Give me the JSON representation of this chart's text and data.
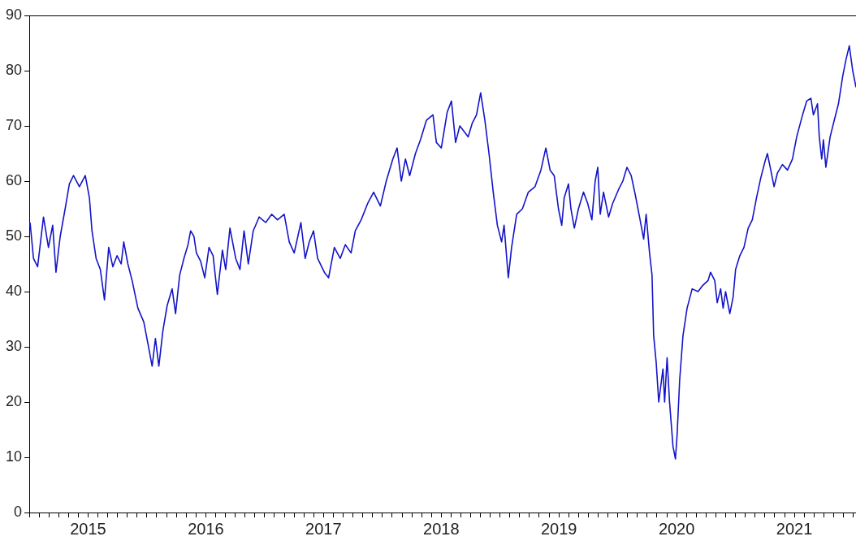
{
  "chart_data": {
    "type": "line",
    "grid": false,
    "legend": false,
    "marker": "none",
    "line_style": "solid",
    "xlim": [
      2015,
      2022.024
    ],
    "ylim": [
      0,
      90
    ],
    "yticks": [
      0,
      10,
      20,
      30,
      40,
      50,
      60,
      70,
      80,
      90
    ],
    "xticks": [
      {
        "value": 2015,
        "label": null
      },
      {
        "value": 2015.083,
        "label": null
      },
      {
        "value": 2015.167,
        "label": null
      },
      {
        "value": 2015.25,
        "label": null
      },
      {
        "value": 2015.333,
        "label": null
      },
      {
        "value": 2015.417,
        "label": null
      },
      {
        "value": 2015.5,
        "label": "2015"
      },
      {
        "value": 2015.583,
        "label": null
      },
      {
        "value": 2015.667,
        "label": null
      },
      {
        "value": 2015.75,
        "label": null
      },
      {
        "value": 2015.833,
        "label": null
      },
      {
        "value": 2015.917,
        "label": null
      },
      {
        "value": 2016,
        "label": null
      },
      {
        "value": 2016.083,
        "label": null
      },
      {
        "value": 2016.167,
        "label": null
      },
      {
        "value": 2016.25,
        "label": null
      },
      {
        "value": 2016.333,
        "label": null
      },
      {
        "value": 2016.417,
        "label": null
      },
      {
        "value": 2016.5,
        "label": "2016"
      },
      {
        "value": 2016.583,
        "label": null
      },
      {
        "value": 2016.667,
        "label": null
      },
      {
        "value": 2016.75,
        "label": null
      },
      {
        "value": 2016.833,
        "label": null
      },
      {
        "value": 2016.917,
        "label": null
      },
      {
        "value": 2017,
        "label": null
      },
      {
        "value": 2017.083,
        "label": null
      },
      {
        "value": 2017.167,
        "label": null
      },
      {
        "value": 2017.25,
        "label": null
      },
      {
        "value": 2017.333,
        "label": null
      },
      {
        "value": 2017.417,
        "label": null
      },
      {
        "value": 2017.5,
        "label": "2017"
      },
      {
        "value": 2017.583,
        "label": null
      },
      {
        "value": 2017.667,
        "label": null
      },
      {
        "value": 2017.75,
        "label": null
      },
      {
        "value": 2017.833,
        "label": null
      },
      {
        "value": 2017.917,
        "label": null
      },
      {
        "value": 2018,
        "label": null
      },
      {
        "value": 2018.083,
        "label": null
      },
      {
        "value": 2018.167,
        "label": null
      },
      {
        "value": 2018.25,
        "label": null
      },
      {
        "value": 2018.333,
        "label": null
      },
      {
        "value": 2018.417,
        "label": null
      },
      {
        "value": 2018.5,
        "label": "2018"
      },
      {
        "value": 2018.583,
        "label": null
      },
      {
        "value": 2018.667,
        "label": null
      },
      {
        "value": 2018.75,
        "label": null
      },
      {
        "value": 2018.833,
        "label": null
      },
      {
        "value": 2018.917,
        "label": null
      },
      {
        "value": 2019,
        "label": null
      },
      {
        "value": 2019.083,
        "label": null
      },
      {
        "value": 2019.167,
        "label": null
      },
      {
        "value": 2019.25,
        "label": null
      },
      {
        "value": 2019.333,
        "label": null
      },
      {
        "value": 2019.417,
        "label": null
      },
      {
        "value": 2019.5,
        "label": "2019"
      },
      {
        "value": 2019.583,
        "label": null
      },
      {
        "value": 2019.667,
        "label": null
      },
      {
        "value": 2019.75,
        "label": null
      },
      {
        "value": 2019.833,
        "label": null
      },
      {
        "value": 2019.917,
        "label": null
      },
      {
        "value": 2020,
        "label": null
      },
      {
        "value": 2020.083,
        "label": null
      },
      {
        "value": 2020.167,
        "label": null
      },
      {
        "value": 2020.25,
        "label": null
      },
      {
        "value": 2020.333,
        "label": null
      },
      {
        "value": 2020.417,
        "label": null
      },
      {
        "value": 2020.5,
        "label": "2020"
      },
      {
        "value": 2020.583,
        "label": null
      },
      {
        "value": 2020.667,
        "label": null
      },
      {
        "value": 2020.75,
        "label": null
      },
      {
        "value": 2020.833,
        "label": null
      },
      {
        "value": 2020.917,
        "label": null
      },
      {
        "value": 2021,
        "label": null
      },
      {
        "value": 2021.083,
        "label": null
      },
      {
        "value": 2021.167,
        "label": null
      },
      {
        "value": 2021.25,
        "label": null
      },
      {
        "value": 2021.333,
        "label": null
      },
      {
        "value": 2021.417,
        "label": null
      },
      {
        "value": 2021.5,
        "label": "2021"
      },
      {
        "value": 2021.583,
        "label": null
      },
      {
        "value": 2021.667,
        "label": null
      },
      {
        "value": 2021.75,
        "label": null
      },
      {
        "value": 2021.833,
        "label": null
      },
      {
        "value": 2021.917,
        "label": null
      },
      {
        "value": 2022,
        "label": null
      }
    ],
    "series": [
      {
        "color": "#1414c8",
        "x": [
          2015.007,
          2015.036,
          2015.071,
          2015.121,
          2015.163,
          2015.199,
          2015.227,
          2015.263,
          2015.305,
          2015.341,
          2015.376,
          2015.426,
          2015.476,
          2015.511,
          2015.533,
          2015.568,
          2015.604,
          2015.639,
          2015.675,
          2015.71,
          2015.746,
          2015.781,
          2015.803,
          2015.838,
          2015.874,
          2015.923,
          2015.973,
          2016.009,
          2016.044,
          2016.072,
          2016.101,
          2016.136,
          2016.172,
          2016.214,
          2016.243,
          2016.278,
          2016.314,
          2016.349,
          2016.371,
          2016.399,
          2016.42,
          2016.456,
          2016.491,
          2016.527,
          2016.562,
          2016.598,
          2016.641,
          2016.669,
          2016.705,
          2016.754,
          2016.79,
          2016.825,
          2016.861,
          2016.903,
          2016.953,
          2017.009,
          2017.06,
          2017.109,
          2017.166,
          2017.209,
          2017.251,
          2017.308,
          2017.344,
          2017.379,
          2017.415,
          2017.45,
          2017.507,
          2017.543,
          2017.592,
          2017.642,
          2017.685,
          2017.734,
          2017.77,
          2017.82,
          2017.876,
          2017.926,
          2017.983,
          2018.033,
          2018.089,
          2018.125,
          2018.161,
          2018.196,
          2018.232,
          2018.281,
          2018.324,
          2018.374,
          2018.43,
          2018.459,
          2018.501,
          2018.551,
          2018.587,
          2018.622,
          2018.658,
          2018.729,
          2018.764,
          2018.8,
          2018.835,
          2018.871,
          2018.906,
          2018.942,
          2018.977,
          2019.013,
          2019.034,
          2019.07,
          2019.098,
          2019.141,
          2019.19,
          2019.24,
          2019.297,
          2019.347,
          2019.389,
          2019.425,
          2019.46,
          2019.496,
          2019.524,
          2019.545,
          2019.581,
          2019.602,
          2019.631,
          2019.666,
          2019.709,
          2019.744,
          2019.78,
          2019.808,
          2019.83,
          2019.851,
          2019.879,
          2019.922,
          2019.957,
          2020.007,
          2020.043,
          2020.078,
          2020.114,
          2020.149,
          2020.185,
          2020.22,
          2020.241,
          2020.27,
          2020.291,
          2020.305,
          2020.327,
          2020.348,
          2020.384,
          2020.398,
          2020.419,
          2020.44,
          2020.469,
          2020.49,
          2020.504,
          2020.526,
          2020.554,
          2020.589,
          2020.632,
          2020.682,
          2020.717,
          2020.767,
          2020.788,
          2020.824,
          2020.845,
          2020.874,
          2020.895,
          2020.916,
          2020.952,
          2020.98,
          2021.001,
          2021.037,
          2021.072,
          2021.108,
          2021.143,
          2021.179,
          2021.214,
          2021.25,
          2021.271,
          2021.3,
          2021.328,
          2021.357,
          2021.399,
          2021.442,
          2021.484,
          2021.52,
          2021.57,
          2021.605,
          2021.641,
          2021.662,
          2021.697,
          2021.712,
          2021.733,
          2021.747,
          2021.768,
          2021.804,
          2021.839,
          2021.875,
          2021.911,
          2021.939,
          2021.967,
          2021.996,
          2022.024
        ],
        "values": [
          52.5,
          46,
          44.5,
          53.5,
          48,
          52,
          43.5,
          50,
          55,
          59.5,
          61,
          59,
          61,
          57,
          51,
          46,
          44,
          38.5,
          48,
          44.5,
          46.5,
          45,
          49,
          45,
          42,
          37,
          34.5,
          30.5,
          26.5,
          31.5,
          26.5,
          33,
          37.5,
          40.5,
          36,
          43,
          46,
          48.5,
          51,
          50,
          47,
          45.5,
          42.5,
          48,
          46.5,
          39.5,
          47.5,
          44,
          51.5,
          46,
          44,
          51,
          45,
          51,
          53.5,
          52.5,
          54,
          53,
          54,
          49,
          47,
          52.5,
          46,
          49,
          51,
          46,
          43.5,
          42.5,
          48,
          46,
          48.5,
          47,
          51,
          53,
          56,
          58,
          55.5,
          60,
          64,
          66,
          60,
          64,
          61,
          65,
          67.5,
          71,
          72,
          67,
          66,
          72.5,
          74.5,
          67,
          70,
          68,
          70.5,
          72,
          76,
          71,
          65,
          58,
          52,
          49,
          52,
          42.5,
          48,
          54,
          55,
          58,
          59,
          62,
          66,
          62,
          61,
          55,
          52,
          57,
          59.5,
          55,
          51.5,
          55,
          58,
          56,
          53,
          60,
          62.5,
          54,
          58,
          53.5,
          56,
          58.5,
          60,
          62.5,
          61,
          57.5,
          53.5,
          49.5,
          54,
          47,
          43,
          32,
          27,
          20,
          26,
          20,
          28,
          20,
          12,
          9.7,
          14,
          24,
          32,
          37,
          40.5,
          40,
          41,
          42,
          43.5,
          42,
          38,
          40.5,
          37,
          40,
          36,
          39,
          44,
          46.5,
          48,
          51.5,
          53,
          57,
          60.5,
          63.5,
          65,
          62,
          59,
          61.5,
          63,
          62,
          64,
          68,
          72,
          74.5,
          75,
          72,
          74,
          68,
          64,
          67.5,
          62.5,
          68,
          71,
          74,
          79,
          82,
          84.5,
          80,
          77
        ]
      }
    ]
  }
}
